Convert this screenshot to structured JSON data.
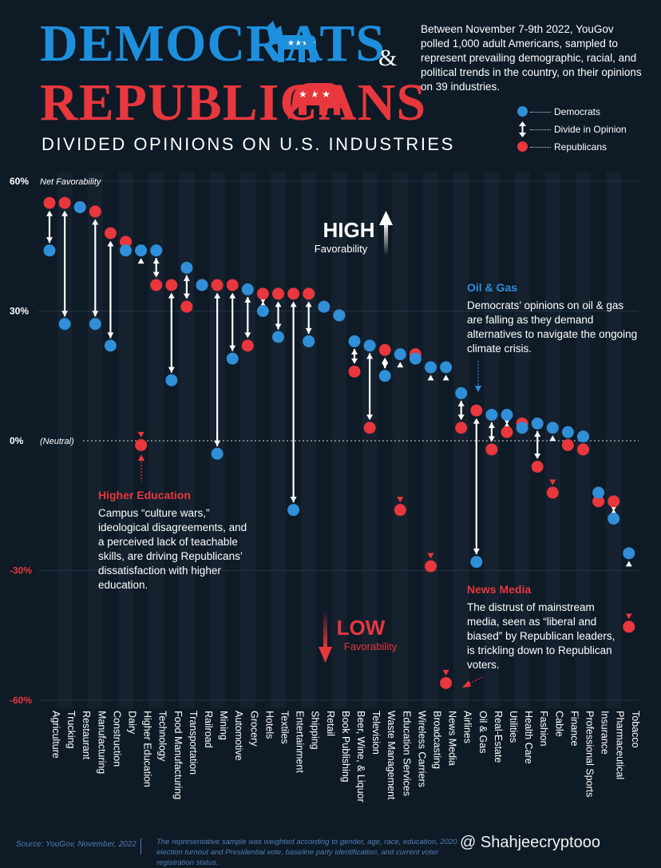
{
  "header": {
    "title_dem": "DEMOCRATS",
    "title_amp": "&",
    "title_rep": "REPUBLICANS",
    "subtitle": "DIVIDED OPINIONS ON U.S. INDUSTRIES",
    "intro": "Between November 7-9th 2022, YouGov polled 1,000 adult Americans, sampled to represent prevailing demographic, racial, and political trends in the country, on their opinions on 39 industries."
  },
  "legend": {
    "democrats": "Democrats",
    "divide": "Divide in Opinion",
    "republicans": "Republicans"
  },
  "colors": {
    "democrats": "#2f8fd8",
    "republicans": "#e8373d",
    "background": "#0e1a26"
  },
  "chart_data": {
    "type": "scatter",
    "ylabel": "Net Favorability",
    "ylim": [
      -60,
      60
    ],
    "yticks": [
      {
        "value": 60,
        "label": "60%"
      },
      {
        "value": 30,
        "label": "30%"
      },
      {
        "value": 0,
        "label": "0%"
      },
      {
        "value": -30,
        "label": "-30%"
      },
      {
        "value": -60,
        "label": "-60%"
      }
    ],
    "neutral_label": "(Neutral)",
    "categories": [
      "Agriculture",
      "Trucking",
      "Restaurant",
      "Manufacturing",
      "Construction",
      "Dairy",
      "Higher Education",
      "Technology",
      "Food Manufacturing",
      "Transportation",
      "Railroad",
      "Mining",
      "Automotive",
      "Grocery",
      "Hotels",
      "Textiles",
      "Entertainment",
      "Shipping",
      "Retail",
      "Book Publishing",
      "Beer, Wine, & Liquor",
      "Television",
      "Waste Management",
      "Education Services",
      "Wireless Carriers",
      "Broadcasting",
      "News Media",
      "Airlines",
      "Oil & Gas",
      "Real-Estate",
      "Utilities",
      "Health Care",
      "Fashion",
      "Cable",
      "Finance",
      "Professional Sports",
      "Insurance",
      "Pharmaceutical",
      "Tobacco"
    ],
    "series": [
      {
        "name": "Democrats",
        "values": [
          44,
          27,
          54,
          27,
          22,
          44,
          44,
          44,
          14,
          40,
          36,
          -3,
          19,
          35,
          30,
          24,
          -16,
          23,
          31,
          29,
          23,
          22,
          15,
          20,
          19,
          17,
          17,
          11,
          -28,
          6,
          6,
          3,
          4,
          3,
          2,
          1,
          -12,
          -18,
          -26
        ]
      },
      {
        "name": "Republicans",
        "values": [
          55,
          55,
          54,
          53,
          48,
          46,
          -1,
          36,
          36,
          31,
          36,
          36,
          36,
          22,
          34,
          34,
          34,
          34,
          31,
          29,
          16,
          3,
          21,
          -16,
          20,
          -29,
          -56,
          3,
          7,
          -2,
          2,
          4,
          -6,
          -12,
          -1,
          -2,
          -14,
          -14,
          -43
        ]
      }
    ],
    "annotations": {
      "high": "HIGH",
      "high_sub": "Favorability",
      "low": "LOW",
      "low_sub": "Favorability"
    }
  },
  "annotations": {
    "higher_ed_title": "Higher Education",
    "higher_ed_body": "Campus “culture wars,” ideological disagreements, and a perceived lack of teachable skills, are driving Republicans’ dissatisfaction with higher education.",
    "oil_title": "Oil & Gas",
    "oil_body": "Democrats’ opinions on oil & gas are falling as they demand alternatives to navigate the ongoing climate crisis.",
    "news_title": "News Media",
    "news_body": "The distrust of mainstream media, seen as “liberal and biased” by Republican leaders, is trickling down to Republican voters."
  },
  "footer": {
    "source": "Source: YouGov, November, 2022",
    "note": "The representative sample was weighted according to gender, age, race, education, 2020 election turnout and Presidential vote, baseline party identification, and current voter registration status.",
    "watermark": "@ Shahjeecryptooo"
  }
}
